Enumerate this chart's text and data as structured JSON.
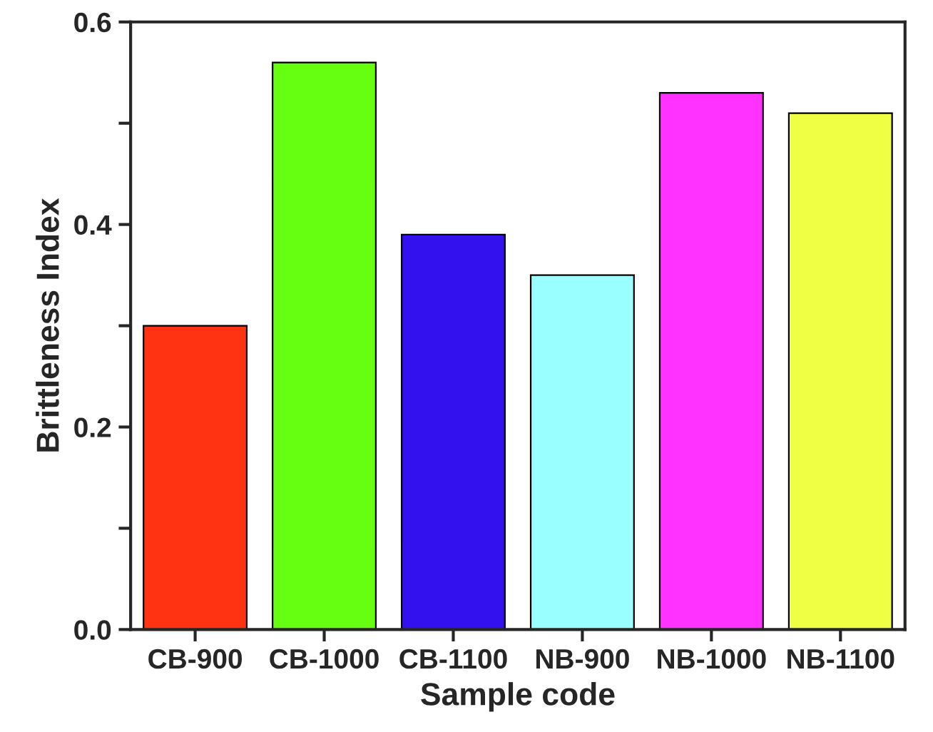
{
  "chart_data": {
    "type": "bar",
    "xlabel": "Sample code",
    "ylabel": "Brittleness Index",
    "categories": [
      "CB-900",
      "CB-1000",
      "CB-1100",
      "NB-900",
      "NB-1000",
      "NB-1100"
    ],
    "values": [
      0.3,
      0.56,
      0.39,
      0.35,
      0.53,
      0.51
    ],
    "colors": [
      "#ff3311",
      "#66ff11",
      "#3311ee",
      "#99ffff",
      "#ff33ff",
      "#eeff44"
    ],
    "ylim": [
      0,
      0.6
    ],
    "yticks": [
      {
        "value": 0,
        "label": "0.0"
      },
      {
        "value": 0.1,
        "label": null
      },
      {
        "value": 0.2,
        "label": "0.2"
      },
      {
        "value": 0.3,
        "label": null
      },
      {
        "value": 0.4,
        "label": "0.4"
      },
      {
        "value": 0.5,
        "label": null
      },
      {
        "value": 0.6,
        "label": "0.6"
      }
    ],
    "grid": false
  }
}
